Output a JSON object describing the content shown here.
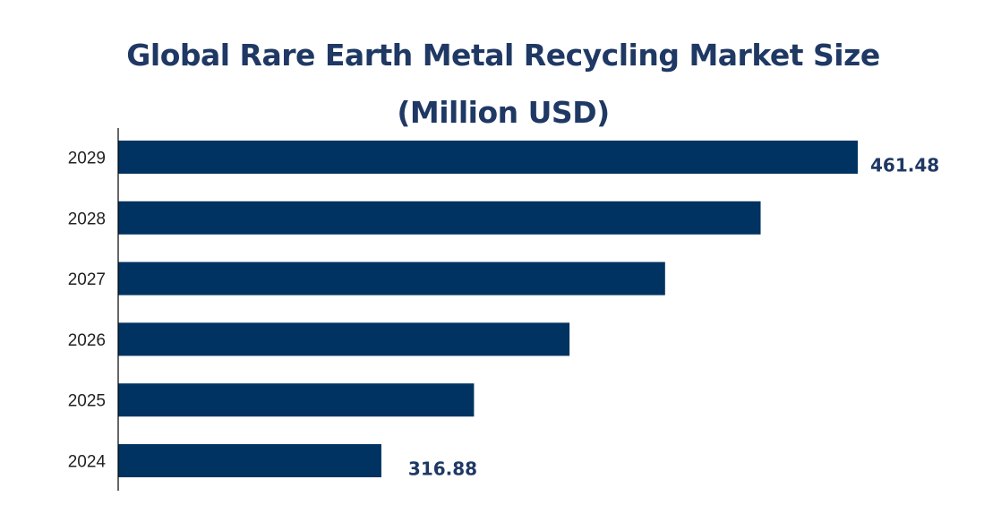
{
  "chart_data": {
    "type": "bar",
    "orientation": "horizontal",
    "title_lines": [
      "Global Rare Earth Metal Recycling Market Size",
      "(Million USD)"
    ],
    "categories": [
      "2029",
      "2028",
      "2027",
      "2026",
      "2025",
      "2024"
    ],
    "values": [
      461.48,
      432,
      403,
      374,
      345,
      316.88
    ],
    "data_labels": [
      "461.48",
      "",
      "",
      "",
      "",
      "316.88"
    ],
    "xlim": [
      237,
      461.48
    ],
    "grid": false,
    "legend": "none",
    "colors": {
      "bar": "#003361",
      "title": "#1f3864",
      "value_label": "#1f3864",
      "axis": "#000000"
    }
  }
}
